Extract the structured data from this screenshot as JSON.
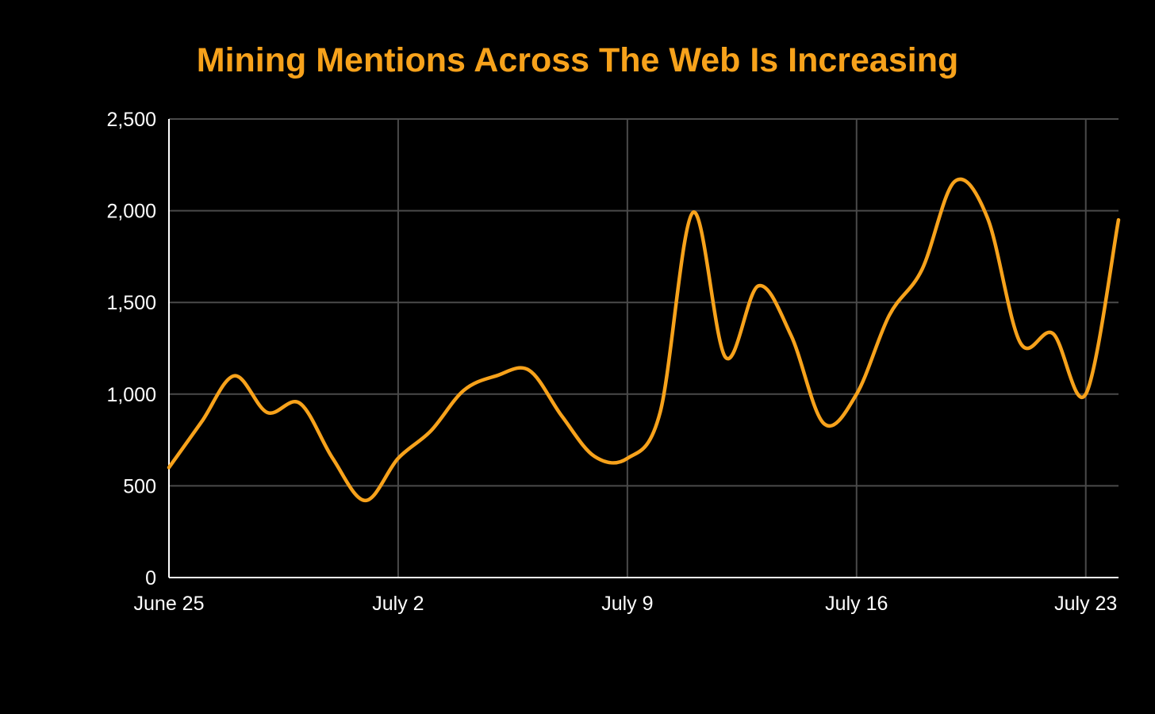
{
  "chart_data": {
    "type": "line",
    "title": "Mining Mentions Across The Web Is Increasing",
    "xlabel": "",
    "ylabel": "",
    "x_tick_labels": [
      "June 25",
      "July 2",
      "July 9",
      "July 16",
      "July 23"
    ],
    "y_tick_labels": [
      "0",
      "500",
      "1,000",
      "1,500",
      "2,000",
      "2,500"
    ],
    "y_ticks": [
      0,
      500,
      1000,
      1500,
      2000,
      2500
    ],
    "ylim": [
      0,
      2500
    ],
    "grid": true,
    "x": [
      "June 25",
      "June 26",
      "June 27",
      "June 28",
      "June 29",
      "June 30",
      "July 1",
      "July 2",
      "July 3",
      "July 4",
      "July 5",
      "July 6",
      "July 7",
      "July 8",
      "July 9",
      "July 10",
      "July 11",
      "July 12",
      "July 13",
      "July 14",
      "July 15",
      "July 16",
      "July 17",
      "July 18",
      "July 19",
      "July 20",
      "July 21",
      "July 22",
      "July 23",
      "July 24"
    ],
    "series": [
      {
        "values": [
          600,
          850,
          1100,
          900,
          950,
          650,
          420,
          650,
          800,
          1020,
          1100,
          1130,
          880,
          660,
          650,
          900,
          1990,
          1200,
          1590,
          1320,
          840,
          1000,
          1430,
          1680,
          2160,
          1960,
          1280,
          1330,
          1000,
          1950
        ]
      }
    ],
    "colors": {
      "background": "#000000",
      "line": "#f7a21b",
      "title": "#f7a21b",
      "grid": "#4a4a4a",
      "axis": "#ffffff",
      "text": "#ffffff"
    }
  }
}
